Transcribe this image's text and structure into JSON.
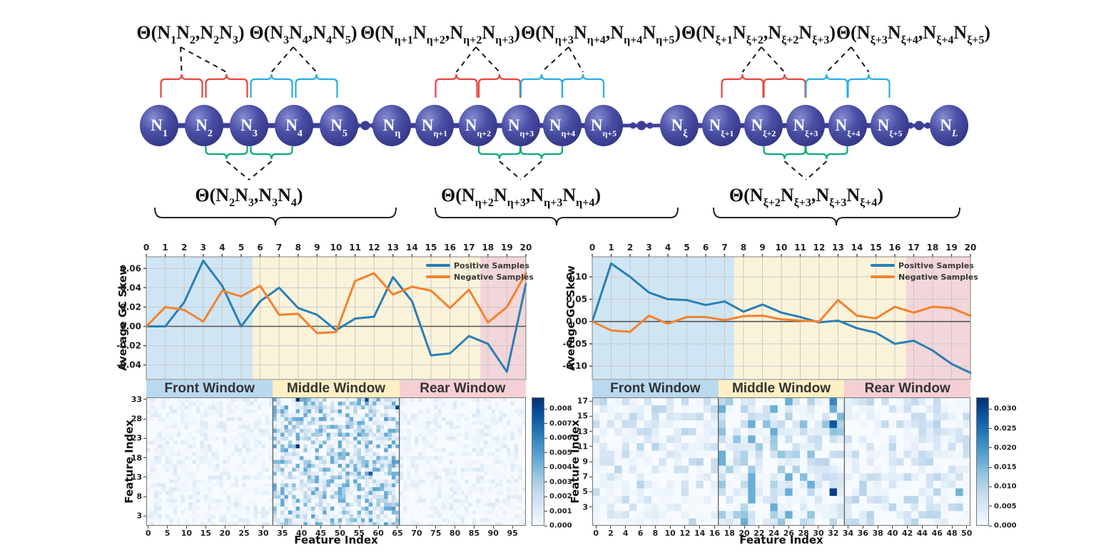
{
  "figure_diagram": {
    "node_label_main": "N",
    "node_subs": [
      "1",
      "2",
      "3",
      "4",
      "5",
      "η",
      "η+1",
      "η+2",
      "η+3",
      "η+4",
      "η+5",
      "ξ",
      "ξ+1",
      "ξ+2",
      "ξ+3",
      "ξ+4",
      "ξ+5",
      "L"
    ],
    "theta_top": [
      [
        [
          "Θ(N",
          0
        ],
        [
          "1",
          1
        ],
        [
          "N",
          0
        ],
        [
          "2",
          1
        ],
        [
          ",N",
          0
        ],
        [
          "2",
          1
        ],
        [
          "N",
          0
        ],
        [
          "3",
          1
        ],
        [
          ")",
          0
        ]
      ],
      [
        [
          "Θ(N",
          0
        ],
        [
          "3",
          1
        ],
        [
          "N",
          0
        ],
        [
          "4",
          1
        ],
        [
          ",N",
          0
        ],
        [
          "4",
          1
        ],
        [
          "N",
          0
        ],
        [
          "5",
          1
        ],
        [
          ")",
          0
        ]
      ],
      [
        [
          "Θ(N",
          0
        ],
        [
          "η+1",
          1
        ],
        [
          "N",
          0
        ],
        [
          "η+2",
          1
        ],
        [
          ",N",
          0
        ],
        [
          "η+2",
          1
        ],
        [
          "N",
          0
        ],
        [
          "η+3",
          1
        ],
        [
          ")",
          0
        ]
      ],
      [
        [
          "Θ(N",
          0
        ],
        [
          "η+3",
          1
        ],
        [
          "N",
          0
        ],
        [
          "η+4",
          1
        ],
        [
          ",N",
          0
        ],
        [
          "η+4",
          1
        ],
        [
          "N",
          0
        ],
        [
          "η+5",
          1
        ],
        [
          ")",
          0
        ]
      ],
      [
        [
          "Θ(N",
          0
        ],
        [
          "ξ+1",
          1
        ],
        [
          "N",
          0
        ],
        [
          "ξ+2",
          1
        ],
        [
          ",N",
          0
        ],
        [
          "ξ+2",
          1
        ],
        [
          "N",
          0
        ],
        [
          "ξ+3",
          1
        ],
        [
          ")",
          0
        ]
      ],
      [
        [
          "Θ(N",
          0
        ],
        [
          "ξ+3",
          1
        ],
        [
          "N",
          0
        ],
        [
          "ξ+4",
          1
        ],
        [
          ",N",
          0
        ],
        [
          "ξ+4",
          1
        ],
        [
          "N",
          0
        ],
        [
          "ξ+5",
          1
        ],
        [
          ")",
          0
        ]
      ]
    ],
    "theta_bottom": [
      [
        [
          "Θ(N",
          0
        ],
        [
          "2",
          1
        ],
        [
          "N",
          0
        ],
        [
          "3",
          1
        ],
        [
          ",N",
          0
        ],
        [
          "3",
          1
        ],
        [
          "N",
          0
        ],
        [
          "4",
          1
        ],
        [
          ")",
          0
        ]
      ],
      [
        [
          "Θ(N",
          0
        ],
        [
          "η+2",
          1
        ],
        [
          "N",
          0
        ],
        [
          "η+3",
          1
        ],
        [
          ",N",
          0
        ],
        [
          "η+3",
          1
        ],
        [
          "N",
          0
        ],
        [
          "η+4",
          1
        ],
        [
          ")",
          0
        ]
      ],
      [
        [
          "Θ(N",
          0
        ],
        [
          "ξ+2",
          1
        ],
        [
          "N",
          0
        ],
        [
          "ξ+3",
          1
        ],
        [
          ",N",
          0
        ],
        [
          "ξ+3",
          1
        ],
        [
          "N",
          0
        ],
        [
          "ξ+4",
          1
        ],
        [
          ")",
          0
        ]
      ]
    ],
    "colors": {
      "node": "#3c3f97",
      "brace_red": "#e8433f",
      "brace_blue": "#2aabe4",
      "brace_green": "#0aa876",
      "dash": "#1a1a1a"
    }
  },
  "window_band": {
    "labels": [
      "Front Window",
      "Middle Window",
      "Rear Window"
    ],
    "colors": [
      "#b9d9ef",
      "#fdf0c4",
      "#f4cfd4"
    ]
  },
  "chart_data": [
    {
      "id": "left-gc-skew",
      "type": "line",
      "ylabel": "Average GC Skew",
      "x": [
        0,
        1,
        2,
        3,
        4,
        5,
        6,
        7,
        8,
        9,
        10,
        11,
        12,
        13,
        14,
        15,
        16,
        17,
        18,
        19,
        20
      ],
      "x_ticks": [
        0,
        1,
        2,
        3,
        4,
        5,
        6,
        7,
        8,
        9,
        10,
        11,
        12,
        13,
        14,
        15,
        16,
        17,
        18,
        19,
        20
      ],
      "ylim": [
        -0.055,
        0.072
      ],
      "y_ticks": [
        0.06,
        0.04,
        0.02,
        0.0,
        -0.02,
        -0.04
      ],
      "y_tick_labels": [
        "0.06",
        "0.04",
        "0.02",
        "0.00",
        "-0.02",
        "-0.04"
      ],
      "regions": [
        {
          "label": "Front Window",
          "from": 0,
          "to": 5.6,
          "color": "#cfe5f4"
        },
        {
          "label": "Middle Window",
          "from": 5.6,
          "to": 17.6,
          "color": "#faf3da"
        },
        {
          "label": "Rear Window",
          "from": 17.6,
          "to": 20,
          "color": "#f3d6d9"
        }
      ],
      "series": [
        {
          "name": "Positive Samples",
          "color": "#2a7fb5",
          "values": [
            0,
            0,
            0.025,
            0.068,
            0.042,
            0,
            0.026,
            0.04,
            0.019,
            0.012,
            -0.004,
            0.008,
            0.01,
            0.051,
            0.026,
            -0.03,
            -0.028,
            -0.01,
            -0.018,
            -0.047,
            0.044
          ]
        },
        {
          "name": "Negative Samples",
          "color": "#f5812c",
          "values": [
            0,
            0.02,
            0.017,
            0.005,
            0.037,
            0.031,
            0.042,
            0.012,
            0.013,
            -0.007,
            -0.006,
            0.047,
            0.055,
            0.033,
            0.041,
            0.037,
            0.019,
            0.038,
            0.004,
            0.02,
            0.055
          ]
        }
      ],
      "legend_position": "top-right",
      "grid": true
    },
    {
      "id": "left-feature-heatmap",
      "type": "heatmap",
      "xlabel": "Feature Index",
      "ylabel": "Feature Index",
      "n_cols": 99,
      "n_rows": 33,
      "x_ticks": [
        0,
        5,
        10,
        15,
        20,
        25,
        30,
        35,
        40,
        45,
        50,
        55,
        60,
        65,
        70,
        75,
        80,
        85,
        90,
        95
      ],
      "y_ticks": [
        3,
        8,
        13,
        18,
        23,
        28,
        33
      ],
      "section_boundaries": [
        33,
        66
      ],
      "vmax": 0.009,
      "colorbar_max": 0.0088,
      "colorbar_ticks": [
        0,
        0.001,
        0.002,
        0.003,
        0.004,
        0.005,
        0.006,
        0.007,
        0.008
      ],
      "colorbar_tick_labels": [
        "0.000",
        "0.001",
        "0.002",
        "0.003",
        "0.004",
        "0.005",
        "0.006",
        "0.007",
        "0.008"
      ],
      "seed": 7,
      "base_levels": {
        "outer": 0.15,
        "middle": 0.55
      },
      "hot_cols": [
        33,
        35,
        39,
        41,
        44,
        46,
        48,
        50,
        52,
        55,
        57,
        58,
        60,
        62,
        64
      ],
      "hot_cells": [
        [
          33,
          33,
          0.0045
        ],
        [
          39,
          33,
          0.0088
        ],
        [
          57,
          33,
          0.008
        ],
        [
          45,
          32,
          0.003
        ],
        [
          65,
          31,
          0.0082
        ],
        [
          33,
          30,
          0.0045
        ],
        [
          62,
          28,
          0.005
        ],
        [
          48,
          28,
          0.003
        ],
        [
          53,
          26,
          0.003
        ],
        [
          42,
          23,
          0.003
        ],
        [
          33,
          21,
          0.005
        ],
        [
          39,
          21,
          0.0088
        ],
        [
          57,
          21,
          0.0045
        ],
        [
          63,
          21,
          0.0052
        ],
        [
          47,
          19,
          0.003
        ],
        [
          40,
          18,
          0.0045
        ],
        [
          33,
          17,
          0.004
        ],
        [
          57,
          17,
          0.004
        ],
        [
          64,
          17,
          0.005
        ],
        [
          33,
          14,
          0.004
        ],
        [
          58,
          14,
          0.0075
        ],
        [
          43,
          12,
          0.003
        ],
        [
          51,
          10,
          0.003
        ],
        [
          58,
          6,
          0.0045
        ],
        [
          64,
          5,
          0.005
        ],
        [
          33,
          4,
          0.003
        ],
        [
          58,
          2,
          0.005
        ],
        [
          45,
          1,
          0.004
        ],
        [
          62,
          1,
          0.005
        ],
        [
          65,
          2,
          0.004
        ],
        [
          36,
          1,
          0.0035
        ]
      ]
    },
    {
      "id": "right-gc-skew",
      "type": "line",
      "ylabel": "Average GC Skew",
      "x": [
        0,
        1,
        2,
        3,
        4,
        5,
        6,
        7,
        8,
        9,
        10,
        11,
        12,
        13,
        14,
        15,
        16,
        17,
        18,
        19,
        20
      ],
      "x_ticks": [
        0,
        1,
        2,
        3,
        4,
        5,
        6,
        7,
        8,
        9,
        10,
        11,
        12,
        13,
        14,
        15,
        16,
        17,
        18,
        19,
        20
      ],
      "ylim": [
        -0.13,
        0.145
      ],
      "y_ticks": [
        0.1,
        0.05,
        0.0,
        -0.05,
        -0.1
      ],
      "y_tick_labels": [
        "0.10",
        "0.05",
        "0.00",
        "-0.05",
        "-0.10"
      ],
      "regions": [
        {
          "label": "Front Window",
          "from": 0,
          "to": 7.5,
          "color": "#cfe5f4"
        },
        {
          "label": "Middle Window",
          "from": 7.5,
          "to": 16.6,
          "color": "#faf3da"
        },
        {
          "label": "Rear Window",
          "from": 16.6,
          "to": 20,
          "color": "#f3d6d9"
        }
      ],
      "series": [
        {
          "name": "Positive Samples",
          "color": "#2a7fb5",
          "values": [
            0,
            0.13,
            0.1,
            0.065,
            0.05,
            0.048,
            0.037,
            0.045,
            0.022,
            0.038,
            0.02,
            0.01,
            -0.002,
            0.002,
            -0.015,
            -0.025,
            -0.05,
            -0.043,
            -0.065,
            -0.095,
            -0.115
          ]
        },
        {
          "name": "Negative Samples",
          "color": "#f5812c",
          "values": [
            0,
            -0.02,
            -0.023,
            0.013,
            -0.005,
            0.01,
            0.01,
            0.003,
            0.012,
            0.013,
            0.005,
            0.002,
            0,
            0.048,
            0.013,
            0.007,
            0.033,
            0.02,
            0.033,
            0.03,
            0.013
          ]
        }
      ],
      "legend_position": "top-right",
      "grid": true
    },
    {
      "id": "right-feature-heatmap",
      "type": "heatmap",
      "xlabel": "Feature Index",
      "ylabel": "Feature Index",
      "n_cols": 51,
      "n_rows": 17,
      "x_ticks": [
        0,
        2,
        4,
        6,
        8,
        10,
        12,
        14,
        16,
        18,
        20,
        22,
        24,
        26,
        28,
        30,
        32,
        34,
        36,
        38,
        40,
        42,
        44,
        46,
        48,
        50
      ],
      "y_ticks": [
        3,
        5,
        7,
        9,
        11,
        13,
        15,
        17
      ],
      "section_boundaries": [
        17,
        34
      ],
      "vmax": 0.033,
      "colorbar_max": 0.033,
      "colorbar_ticks": [
        0,
        0.005,
        0.01,
        0.015,
        0.02,
        0.025,
        0.03
      ],
      "colorbar_tick_labels": [
        "0.000",
        "0.005",
        "0.010",
        "0.015",
        "0.020",
        "0.025",
        "0.030"
      ],
      "seed": 11,
      "base_levels": {
        "outer": 0.3,
        "middle": 0.45
      },
      "hot_cols": [
        17,
        20,
        21,
        24,
        26,
        29,
        32,
        37,
        41,
        44,
        46,
        49
      ],
      "hot_cells": [
        [
          32,
          17,
          0.022
        ],
        [
          29,
          17,
          0.01
        ],
        [
          17,
          17,
          0.009
        ],
        [
          12,
          17,
          0.008
        ],
        [
          4,
          17,
          0.007
        ],
        [
          0,
          17,
          0.007
        ],
        [
          46,
          17,
          0.008
        ],
        [
          42,
          16,
          0.007
        ],
        [
          32,
          14,
          0.028
        ],
        [
          17,
          14,
          0.01
        ],
        [
          0,
          14,
          0.008
        ],
        [
          46,
          14,
          0.01
        ],
        [
          21,
          15,
          0.008
        ],
        [
          44,
          15,
          0.008
        ],
        [
          44,
          13,
          0.008
        ],
        [
          10,
          12,
          0.006
        ],
        [
          26,
          12,
          0.007
        ],
        [
          32,
          12,
          0.007
        ],
        [
          21,
          8,
          0.012
        ],
        [
          29,
          9,
          0.007
        ],
        [
          44,
          9,
          0.008
        ],
        [
          9,
          9,
          0.006
        ],
        [
          17,
          7,
          0.007
        ],
        [
          37,
          7,
          0.008
        ],
        [
          46,
          7,
          0.009
        ],
        [
          32,
          7,
          0.007
        ],
        [
          32,
          5,
          0.031
        ],
        [
          49,
          5,
          0.016
        ],
        [
          36,
          5,
          0.01
        ],
        [
          29,
          5,
          0.009
        ],
        [
          0,
          5,
          0.008
        ],
        [
          12,
          5,
          0.007
        ],
        [
          24,
          5,
          0.007
        ],
        [
          4,
          4,
          0.008
        ],
        [
          24,
          4,
          0.007
        ],
        [
          7,
          4,
          0.006
        ],
        [
          17,
          2,
          0.012
        ],
        [
          20,
          2,
          0.013
        ],
        [
          29,
          2,
          0.013
        ],
        [
          37,
          2,
          0.01
        ],
        [
          46,
          2,
          0.009
        ],
        [
          2,
          2,
          0.006
        ],
        [
          44,
          2,
          0.008
        ]
      ]
    }
  ]
}
